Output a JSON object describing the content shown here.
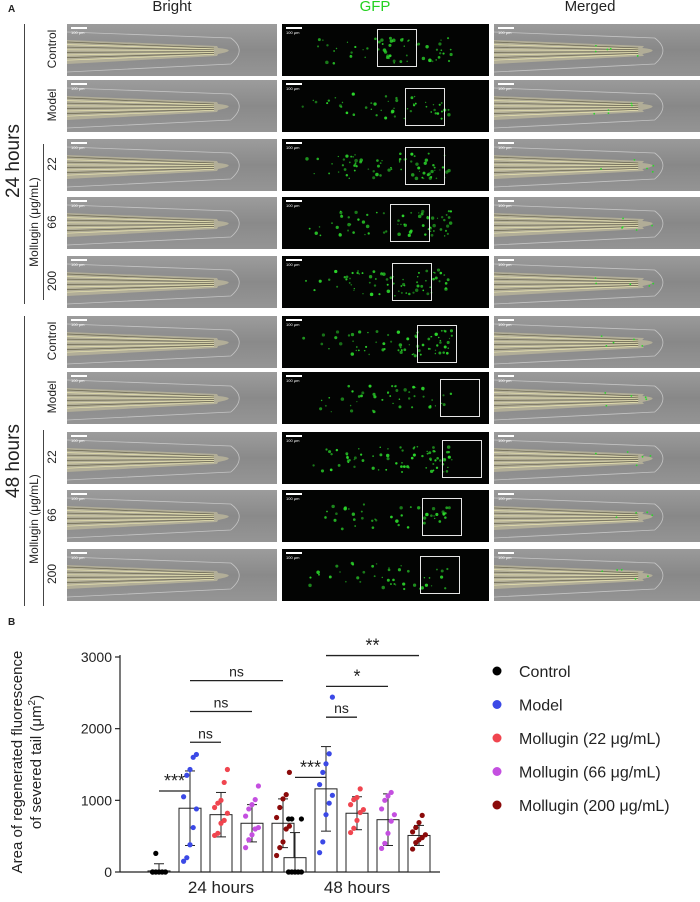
{
  "panel_a": {
    "label": "A",
    "columns": [
      "Bright",
      "GFP",
      "Merged"
    ],
    "groups": [
      "24 hours",
      "48 hours"
    ],
    "treatment_label": "Mollugin (μg/mL)",
    "rows": [
      {
        "group": "24 hours",
        "label": "Control"
      },
      {
        "group": "24 hours",
        "label": "Model"
      },
      {
        "group": "24 hours",
        "label": "22"
      },
      {
        "group": "24 hours",
        "label": "66"
      },
      {
        "group": "24 hours",
        "label": "200"
      },
      {
        "group": "48 hours",
        "label": "Control"
      },
      {
        "group": "48 hours",
        "label": "Model"
      },
      {
        "group": "48 hours",
        "label": "22"
      },
      {
        "group": "48 hours",
        "label": "66"
      },
      {
        "group": "48 hours",
        "label": "200"
      }
    ],
    "scale_bar_label": "100 μm",
    "colors": {
      "gfp_title": "#22d11f",
      "gfp_signal": "#2bd62b",
      "roi_box": "#e6e6e6"
    }
  },
  "panel_b": {
    "label": "B"
  },
  "chart_data": {
    "type": "bar",
    "ylabel": "Area of regenerated fluorescence of severed tail (μm²)",
    "ylabel_line1": "Area of regenerated fluorescence",
    "ylabel_line2": "of severed tail (μm",
    "ylabel_sup": "2",
    "ylabel_close": ")",
    "ylim": [
      0,
      3000
    ],
    "yticks": [
      0,
      1000,
      2000,
      3000
    ],
    "categories": [
      "24 hours",
      "48 hours"
    ],
    "legend_position": "right",
    "series": [
      {
        "name": "Control",
        "color": "#000000",
        "values": [
          15,
          200
        ],
        "sd": [
          100,
          350
        ],
        "points": [
          [
            0,
            0,
            0,
            0,
            0,
            0,
            0,
            0,
            0,
            0,
            0,
            260
          ],
          [
            0,
            0,
            0,
            0,
            0,
            0,
            0,
            0,
            0,
            740,
            740,
            740
          ]
        ]
      },
      {
        "name": "Model",
        "color": "#3b49e6",
        "values": [
          890,
          1160
        ],
        "sd": [
          520,
          590
        ],
        "points": [
          [
            150,
            200,
            380,
            620,
            880,
            1050,
            1350,
            1430,
            1600,
            1640
          ],
          [
            270,
            420,
            800,
            960,
            1070,
            1220,
            1390,
            1510,
            1650,
            2440
          ]
        ]
      },
      {
        "name": "Mollugin (22 μg/mL)",
        "color": "#f0454f",
        "values": [
          800,
          820
        ],
        "sd": [
          310,
          230
        ],
        "points": [
          [
            510,
            540,
            680,
            720,
            820,
            900,
            960,
            1000,
            1250,
            1430
          ],
          [
            550,
            610,
            720,
            830,
            870,
            940,
            1010,
            1040,
            1160
          ]
        ]
      },
      {
        "name": "Mollugin (66 μg/mL)",
        "color": "#c44fe0",
        "values": [
          680,
          730
        ],
        "sd": [
          260,
          360
        ],
        "points": [
          [
            340,
            450,
            520,
            600,
            620,
            780,
            880,
            940,
            1010,
            1200
          ],
          [
            330,
            400,
            540,
            710,
            800,
            880,
            1000,
            1060,
            1110
          ]
        ]
      },
      {
        "name": "Mollugin (200 μg/mL)",
        "color": "#8b0a0a",
        "values": [
          680,
          510
        ],
        "sd": [
          340,
          140
        ],
        "points": [
          [
            230,
            340,
            420,
            600,
            640,
            760,
            900,
            1020,
            1080,
            1390
          ],
          [
            320,
            410,
            450,
            480,
            520,
            560,
            620,
            690,
            790
          ]
        ]
      }
    ],
    "significance": [
      {
        "group": "24 hours",
        "from": 0,
        "to": 1,
        "label": "***",
        "y": 1130
      },
      {
        "group": "24 hours",
        "from": 1,
        "to": 2,
        "label": "ns",
        "y": 1810
      },
      {
        "group": "24 hours",
        "from": 1,
        "to": 3,
        "label": "ns",
        "y": 2240
      },
      {
        "group": "24 hours",
        "from": 1,
        "to": 4,
        "label": "ns",
        "y": 2670
      },
      {
        "group": "48 hours",
        "from": 0,
        "to": 1,
        "label": "***",
        "y": 1320
      },
      {
        "group": "48 hours",
        "from": 1,
        "to": 2,
        "label": "ns",
        "y": 2160
      },
      {
        "group": "48 hours",
        "from": 1,
        "to": 3,
        "label": "*",
        "y": 2590
      },
      {
        "group": "48 hours",
        "from": 1,
        "to": 4,
        "label": "**",
        "y": 3020
      }
    ]
  }
}
